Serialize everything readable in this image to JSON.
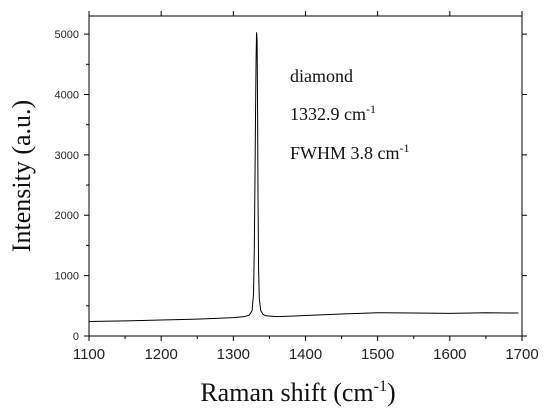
{
  "chart_data": {
    "type": "line",
    "xlabel": "Raman shift (cm",
    "xlabel_sup": "-1",
    "xlabel_end": ")",
    "ylabel": "Intensity (a.u.)",
    "xlim": [
      1100,
      1700
    ],
    "ylim": [
      0,
      5300
    ],
    "xticks": [
      1100,
      1200,
      1300,
      1400,
      1500,
      1600,
      1700
    ],
    "yticks": [
      0,
      1000,
      2000,
      3000,
      4000,
      5000
    ],
    "grid": false,
    "annotations": {
      "line1": "diamond",
      "line2_main": "1332.9 cm",
      "line2_sup": "-1",
      "line3_main": "FWHM 3.8 cm",
      "line3_sup": "-1"
    },
    "series": [
      {
        "color": "#000000",
        "x": [
          1100,
          1150,
          1200,
          1250,
          1280,
          1300,
          1315,
          1322,
          1326,
          1328,
          1329,
          1330,
          1331,
          1331.6,
          1332.2,
          1332.9,
          1333.6,
          1334.2,
          1335,
          1336,
          1338,
          1341,
          1345,
          1360,
          1380,
          1400,
          1450,
          1500,
          1550,
          1600,
          1650,
          1695
        ],
        "y": [
          240,
          250,
          265,
          280,
          295,
          305,
          320,
          345,
          420,
          700,
          1400,
          2600,
          4000,
          4650,
          5030,
          4900,
          3800,
          2300,
          1100,
          620,
          420,
          360,
          335,
          320,
          330,
          340,
          365,
          385,
          380,
          375,
          385,
          380
        ]
      }
    ]
  }
}
